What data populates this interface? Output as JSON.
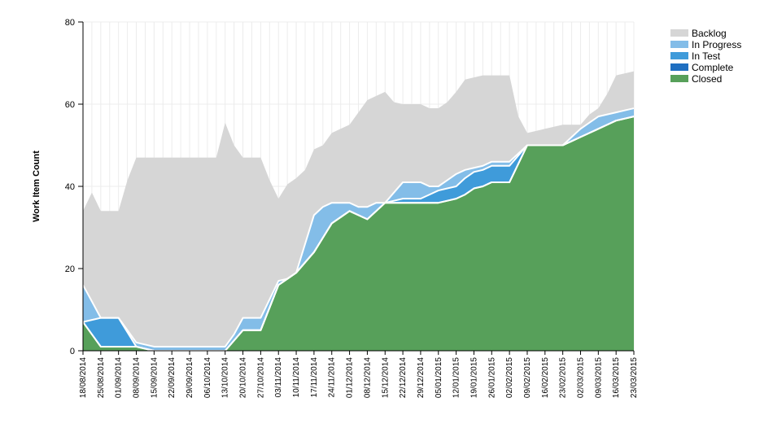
{
  "chart_data": {
    "type": "area",
    "stacked": true,
    "title": "",
    "xlabel": "",
    "ylabel": "Work Item Count",
    "ylim": [
      0,
      80
    ],
    "yticks": [
      0,
      20,
      40,
      60,
      80
    ],
    "grid": true,
    "legend_position": "top-right",
    "categories": [
      "18/08/2014",
      "21/08/2014",
      "25/08/2014",
      "28/08/2014",
      "01/09/2014",
      "04/09/2014",
      "08/09/2014",
      "11/09/2014",
      "15/09/2014",
      "18/09/2014",
      "22/09/2014",
      "25/09/2014",
      "29/09/2014",
      "02/10/2014",
      "06/10/2014",
      "09/10/2014",
      "13/10/2014",
      "16/10/2014",
      "20/10/2014",
      "23/10/2014",
      "27/10/2014",
      "30/10/2014",
      "03/11/2014",
      "06/11/2014",
      "10/11/2014",
      "13/11/2014",
      "17/11/2014",
      "20/11/2014",
      "24/11/2014",
      "27/11/2014",
      "01/12/2014",
      "04/12/2014",
      "08/12/2014",
      "11/12/2014",
      "15/12/2014",
      "18/12/2014",
      "22/12/2014",
      "25/12/2014",
      "29/12/2014",
      "01/01/2015",
      "05/01/2015",
      "08/01/2015",
      "12/01/2015",
      "15/01/2015",
      "19/01/2015",
      "22/01/2015",
      "26/01/2015",
      "29/01/2015",
      "02/02/2015",
      "05/02/2015",
      "09/02/2015",
      "12/02/2015",
      "16/02/2015",
      "19/02/2015",
      "23/02/2015",
      "26/02/2015",
      "02/03/2015",
      "05/03/2015",
      "09/03/2015",
      "12/03/2015",
      "16/03/2015",
      "19/03/2015",
      "23/03/2015"
    ],
    "tick_labels": [
      "18/08/2014",
      "25/08/2014",
      "01/09/2014",
      "08/09/2014",
      "15/09/2014",
      "22/09/2014",
      "29/09/2014",
      "06/10/2014",
      "13/10/2014",
      "20/10/2014",
      "27/10/2014",
      "03/11/2014",
      "10/11/2014",
      "17/11/2014",
      "24/11/2014",
      "01/12/2014",
      "08/12/2014",
      "15/12/2014",
      "22/12/2014",
      "29/12/2014",
      "05/01/2015",
      "12/01/2015",
      "19/01/2015",
      "26/01/2015",
      "02/02/2015",
      "09/02/2015",
      "16/02/2015",
      "23/02/2015",
      "02/03/2015",
      "09/03/2015",
      "16/03/2015",
      "23/03/2015"
    ],
    "series": [
      {
        "name": "Closed",
        "color": "#57a05a",
        "values": [
          7,
          4,
          1,
          1,
          1,
          1,
          1,
          0.5,
          0,
          0,
          0,
          0,
          0,
          0,
          0,
          0,
          0,
          2.5,
          5,
          5,
          5,
          10.5,
          16,
          17.5,
          19,
          21.5,
          24,
          27.5,
          31,
          32.5,
          34,
          33,
          32,
          34,
          36,
          36,
          36,
          36,
          36,
          36,
          36,
          36.5,
          37,
          38,
          39.5,
          40,
          41,
          41,
          41,
          45.5,
          50,
          50,
          50,
          50,
          50,
          51,
          52,
          53,
          54,
          55,
          56,
          56.5,
          57
        ]
      },
      {
        "name": "Complete",
        "color": "#1f6fc1",
        "values": [
          0,
          0,
          0,
          0,
          0,
          0,
          0,
          0,
          0,
          0,
          0,
          0,
          0,
          0,
          0,
          0,
          0,
          0,
          0,
          0,
          0,
          0,
          0,
          0,
          0,
          0,
          0,
          0,
          0,
          0,
          0,
          0,
          0,
          0,
          0,
          0,
          0,
          0,
          0,
          0,
          0,
          0,
          0,
          0,
          0,
          0,
          0,
          0,
          0,
          0,
          0,
          0,
          0,
          0,
          0,
          0,
          0,
          0,
          0,
          0,
          0,
          0,
          0
        ]
      },
      {
        "name": "In Test",
        "color": "#3f9bda",
        "values": [
          0,
          3.5,
          7,
          7,
          7,
          3.5,
          0,
          0,
          0,
          0,
          0,
          0,
          0,
          0,
          0,
          0,
          0,
          0,
          0,
          0,
          0,
          0,
          0,
          0,
          0,
          0,
          0,
          0,
          0,
          0,
          0,
          0,
          0,
          0,
          0,
          0.5,
          1,
          1,
          1,
          2,
          3,
          3,
          3,
          4,
          4,
          4,
          4,
          4,
          4,
          2,
          0,
          0,
          0,
          0,
          0,
          0,
          0,
          0,
          0,
          0,
          0,
          0,
          0
        ]
      },
      {
        "name": "In Progress",
        "color": "#83bde8",
        "values": [
          9,
          4.5,
          0,
          0,
          0,
          0.5,
          1,
          1,
          1,
          1,
          1,
          1,
          1,
          1,
          1,
          1,
          1,
          1.5,
          3,
          3,
          3,
          2,
          1,
          0,
          0,
          4.5,
          9,
          7.5,
          5,
          3.5,
          2,
          2,
          3,
          2,
          0,
          2,
          4,
          4,
          4,
          2,
          1,
          2,
          3,
          2,
          1,
          1,
          1,
          1,
          1,
          0.5,
          0,
          0,
          0,
          0,
          0,
          1,
          2,
          2.5,
          3,
          2.5,
          2,
          2,
          2
        ]
      },
      {
        "name": "Backlog",
        "color": "#d6d6d6",
        "values": [
          18,
          26.5,
          26,
          26,
          26,
          36.5,
          45,
          45.5,
          46,
          46,
          46,
          46,
          46,
          46,
          46,
          46,
          54.5,
          46,
          39,
          39,
          39,
          29,
          20,
          23,
          23,
          18,
          16,
          15,
          17,
          18,
          19,
          23,
          26,
          26,
          27,
          22,
          19,
          19,
          19,
          19,
          19,
          19,
          20,
          22,
          22,
          22,
          21,
          21,
          21,
          9,
          3,
          3.5,
          4,
          4.5,
          5,
          3,
          1,
          2,
          2,
          5,
          9,
          9,
          9
        ]
      }
    ]
  }
}
